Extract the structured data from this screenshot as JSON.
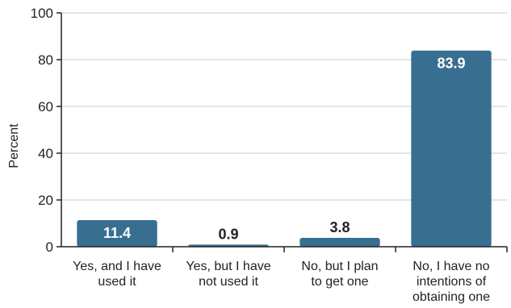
{
  "chart_data": {
    "type": "bar",
    "categories": [
      [
        "Yes, and I have",
        "used it"
      ],
      [
        "Yes, but I have",
        "not used it"
      ],
      [
        "No, but I plan",
        "to get one"
      ],
      [
        "No, I have no",
        "intentions of",
        "obtaining one"
      ]
    ],
    "values": [
      11.4,
      0.9,
      3.8,
      83.9
    ],
    "data_labels": [
      "11.4",
      "0.9",
      "3.8",
      "83.9"
    ],
    "ylabel": "Percent",
    "xlabel": "",
    "title": "",
    "ylim": [
      0,
      100
    ],
    "yticks": [
      0,
      20,
      40,
      60,
      80,
      100
    ],
    "grid": true,
    "legend": "none",
    "colors": {
      "bar": "#386f91",
      "grid": "#dcdcdc",
      "axis": "#222222",
      "label_inside": "#ffffff",
      "label_outside": "#222222"
    }
  }
}
